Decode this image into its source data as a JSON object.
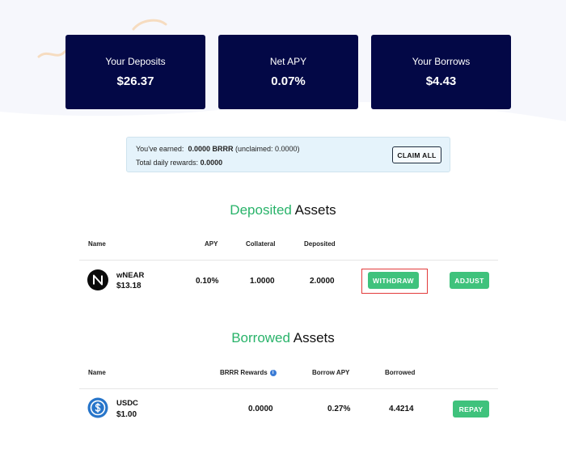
{
  "summary": {
    "deposits": {
      "label": "Your Deposits",
      "value": "$26.37"
    },
    "net_apy": {
      "label": "Net APY",
      "value": "0.07%"
    },
    "borrows": {
      "label": "Your Borrows",
      "value": "$4.43"
    }
  },
  "rewards": {
    "earned_label": "You've earned:",
    "earned_value": "0.0000 BRRR",
    "unclaimed_text": "(unclaimed:  0.0000)",
    "daily_label": "Total daily rewards:",
    "daily_value": "0.0000",
    "claim_button": "CLAIM ALL"
  },
  "deposited": {
    "title_accent": "Deposited",
    "title_rest": "Assets",
    "columns": {
      "name": "Name",
      "apy": "APY",
      "collateral": "Collateral",
      "deposited": "Deposited"
    },
    "rows": [
      {
        "symbol": "wNEAR",
        "price": "$13.18",
        "apy": "0.10%",
        "collateral": "1.0000",
        "deposited": "2.0000",
        "withdraw": "WITHDRAW",
        "adjust": "ADJUST"
      }
    ]
  },
  "borrowed": {
    "title_accent": "Borrowed",
    "title_rest": "Assets",
    "columns": {
      "name": "Name",
      "rewards": "BRRR Rewards",
      "borrow_apy": "Borrow APY",
      "borrowed": "Borrowed"
    },
    "rows": [
      {
        "symbol": "USDC",
        "price": "$1.00",
        "rewards": "0.0000",
        "borrow_apy": "0.27%",
        "borrowed": "4.4214",
        "repay": "REPAY"
      }
    ]
  },
  "colors": {
    "card_bg": "#030846",
    "accent_green": "#29b36a",
    "button_green": "#3fc27c",
    "highlight_red": "#e23b3b",
    "rewards_bg": "#e5f3fb"
  },
  "icons": {
    "wnear": "near-logo-icon",
    "usdc": "usdc-logo-icon",
    "info": "info-icon"
  }
}
